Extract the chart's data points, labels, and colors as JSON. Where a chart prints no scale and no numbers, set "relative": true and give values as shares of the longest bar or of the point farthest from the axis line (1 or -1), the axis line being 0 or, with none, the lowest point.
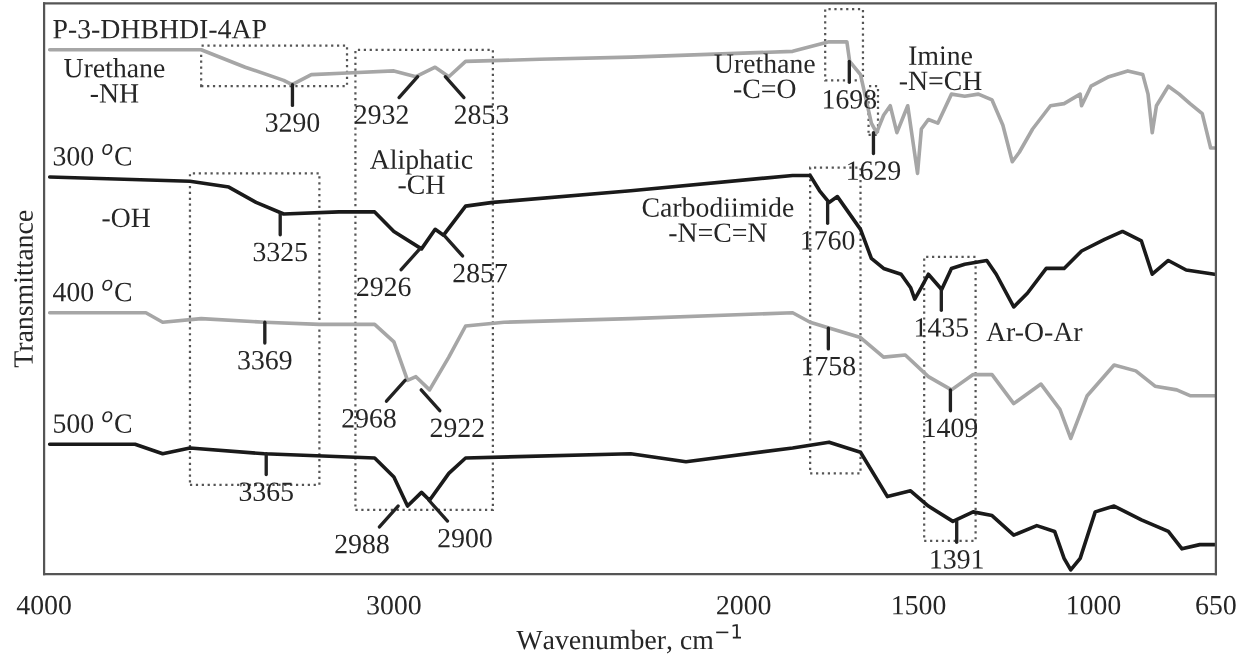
{
  "chart_data": {
    "type": "line",
    "relative": true,
    "xlabel": "Wavenumber, cm$^{−1}$",
    "ylabel": "Transmittance",
    "xlim": [
      4000,
      650
    ],
    "xticks": [
      4000,
      3000,
      2000,
      1500,
      1000,
      650
    ],
    "grid": false,
    "series": [
      {
        "name": "P-3-DHBHDI-4AP",
        "color": "#a6a6a6",
        "x": [
          3984,
          3551,
          3425,
          3315,
          3291,
          3236,
          3134,
          3000,
          2937,
          2882,
          2843,
          2795,
          2583,
          2323,
          1860,
          1756,
          1705,
          1697,
          1666,
          1635,
          1620,
          1600,
          1581,
          1562,
          1542,
          1531,
          1503,
          1492,
          1472,
          1445,
          1406,
          1368,
          1329,
          1290,
          1259,
          1232,
          1212,
          1174,
          1123,
          1084,
          1038,
          1034,
          1007,
          956,
          902,
          859,
          844,
          832,
          820,
          786,
          755,
          724,
          689,
          665,
          654
        ],
        "values": [
          0.985,
          0.985,
          0.952,
          0.927,
          0.919,
          0.938,
          0.941,
          0.945,
          0.934,
          0.952,
          0.934,
          0.963,
          0.967,
          0.971,
          0.982,
          1.0,
          1.0,
          0.963,
          0.938,
          0.846,
          0.828,
          0.861,
          0.879,
          0.828,
          0.861,
          0.879,
          0.751,
          0.835,
          0.853,
          0.846,
          0.901,
          0.897,
          0.901,
          0.89,
          0.842,
          0.773,
          0.791,
          0.835,
          0.879,
          0.883,
          0.901,
          0.879,
          0.916,
          0.934,
          0.945,
          0.938,
          0.901,
          0.828,
          0.879,
          0.916,
          0.901,
          0.883,
          0.864,
          0.799,
          0.799
        ]
      },
      {
        "name": "300 $^{o}$C",
        "color": "#1a1a1a",
        "x": [
          3984,
          3583,
          3472,
          3394,
          3315,
          3157,
          3055,
          3000,
          2921,
          2882,
          2858,
          2795,
          2717,
          2323,
          1860,
          1810,
          1783,
          1756,
          1732,
          1666,
          1635,
          1600,
          1550,
          1523,
          1511,
          1492,
          1472,
          1434,
          1406,
          1368,
          1305,
          1278,
          1228,
          1189,
          1135,
          1084,
          1034,
          968,
          917,
          863,
          832,
          786,
          735,
          654
        ],
        "values": [
          0.744,
          0.736,
          0.725,
          0.696,
          0.674,
          0.678,
          0.678,
          0.641,
          0.608,
          0.645,
          0.634,
          0.689,
          0.696,
          0.718,
          0.747,
          0.747,
          0.718,
          0.696,
          0.707,
          0.645,
          0.59,
          0.571,
          0.56,
          0.535,
          0.513,
          0.535,
          0.56,
          0.531,
          0.571,
          0.579,
          0.586,
          0.56,
          0.498,
          0.524,
          0.571,
          0.571,
          0.604,
          0.626,
          0.641,
          0.623,
          0.56,
          0.586,
          0.568,
          0.56
        ]
      },
      {
        "name": "400 $^{o}$C",
        "color": "#a6a6a6",
        "x": [
          3984,
          3709,
          3661,
          3551,
          3370,
          3213,
          3055,
          3000,
          2961,
          2937,
          2898,
          2843,
          2795,
          2685,
          2323,
          1860,
          1810,
          1756,
          1666,
          1600,
          1538,
          1472,
          1406,
          1344,
          1290,
          1228,
          1150,
          1096,
          1065,
          1018,
          941,
          879,
          824,
          762,
          724,
          654
        ],
        "values": [
          0.487,
          0.487,
          0.469,
          0.476,
          0.469,
          0.465,
          0.465,
          0.432,
          0.359,
          0.366,
          0.341,
          0.403,
          0.462,
          0.469,
          0.476,
          0.487,
          0.469,
          0.458,
          0.44,
          0.403,
          0.407,
          0.366,
          0.341,
          0.37,
          0.37,
          0.315,
          0.352,
          0.304,
          0.249,
          0.33,
          0.388,
          0.377,
          0.348,
          0.341,
          0.33,
          0.33
        ]
      },
      {
        "name": "500 $^{o}$C",
        "color": "#1a1a1a",
        "x": [
          3984,
          3740,
          3661,
          3583,
          3370,
          3055,
          3000,
          2961,
          2921,
          2898,
          2843,
          2795,
          2323,
          2165,
          1860,
          1756,
          1666,
          1589,
          1523,
          1472,
          1402,
          1344,
          1290,
          1228,
          1162,
          1111,
          1084,
          1065,
          1038,
          995,
          941,
          863,
          786,
          747,
          696,
          654
        ],
        "values": [
          0.238,
          0.238,
          0.22,
          0.231,
          0.22,
          0.212,
          0.176,
          0.121,
          0.147,
          0.132,
          0.183,
          0.212,
          0.22,
          0.205,
          0.231,
          0.242,
          0.223,
          0.139,
          0.15,
          0.121,
          0.092,
          0.11,
          0.103,
          0.066,
          0.084,
          0.073,
          0.022,
          0.0,
          0.022,
          0.11,
          0.121,
          0.095,
          0.073,
          0.04,
          0.048,
          0.048
        ]
      }
    ],
    "annotations": [
      "Urethane\n-NH",
      {
        "text": "3290",
        "x": 3290,
        "y": 0.919
      },
      {
        "text": "2932",
        "x": 2932,
        "y": 0.934
      },
      {
        "text": "2853",
        "x": 2853,
        "y": 0.934
      },
      "Aliphatic\n-CH",
      "Urethane\n-C=O",
      {
        "text": "1698",
        "x": 1698,
        "y": 0.963
      },
      {
        "text": "1629",
        "x": 1629,
        "y": 0.828
      },
      "Imine\n-N=CH",
      "-OH",
      {
        "text": "3325",
        "x": 3325,
        "y": 0.674
      },
      {
        "text": "2926",
        "x": 2926,
        "y": 0.608
      },
      {
        "text": "2857",
        "x": 2857,
        "y": 0.634
      },
      "Carbodiimide\n-N=C=N",
      {
        "text": "1760",
        "x": 1760,
        "y": 0.696
      },
      {
        "text": "1435",
        "x": 1435,
        "y": 0.531
      },
      "Ar-O-Ar",
      {
        "text": "3369",
        "x": 3369,
        "y": 0.469
      },
      {
        "text": "2968",
        "x": 2968,
        "y": 0.359
      },
      {
        "text": "2922",
        "x": 2922,
        "y": 0.341
      },
      {
        "text": "1758",
        "x": 1758,
        "y": 0.458
      },
      {
        "text": "1409",
        "x": 1409,
        "y": 0.341
      },
      {
        "text": "3365",
        "x": 3365,
        "y": 0.22
      },
      {
        "text": "2988",
        "x": 2988,
        "y": 0.121
      },
      {
        "text": "2900",
        "x": 2900,
        "y": 0.132
      },
      {
        "text": "1391",
        "x": 1391,
        "y": 0.092
      }
    ]
  }
}
